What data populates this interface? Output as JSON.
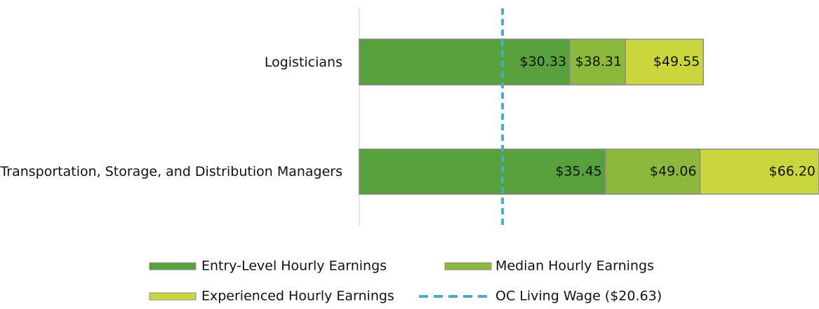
{
  "chart_data": {
    "type": "bar",
    "orientation": "horizontal",
    "categories": [
      "Logisticians",
      "Transportation, Storage, and Distribution Managers"
    ],
    "series": [
      {
        "name": "Entry-Level Hourly Earnings",
        "color": "#56a13b",
        "values": [
          30.33,
          35.45
        ],
        "value_labels": [
          "$30.33",
          "$35.45"
        ]
      },
      {
        "name": "Median Hourly Earnings",
        "color": "#8db83e",
        "values": [
          38.31,
          49.06
        ],
        "value_labels": [
          "$38.31",
          "$49.06"
        ]
      },
      {
        "name": "Experienced Hourly Earnings",
        "color": "#c9d63d",
        "values": [
          49.55,
          66.2
        ],
        "value_labels": [
          "$49.55",
          "$66.20"
        ]
      }
    ],
    "reference_line": {
      "name": "OC Living Wage ($20.63)",
      "value": 20.63,
      "color": "#4bacc6"
    },
    "xlim": [
      0,
      66.2
    ]
  }
}
